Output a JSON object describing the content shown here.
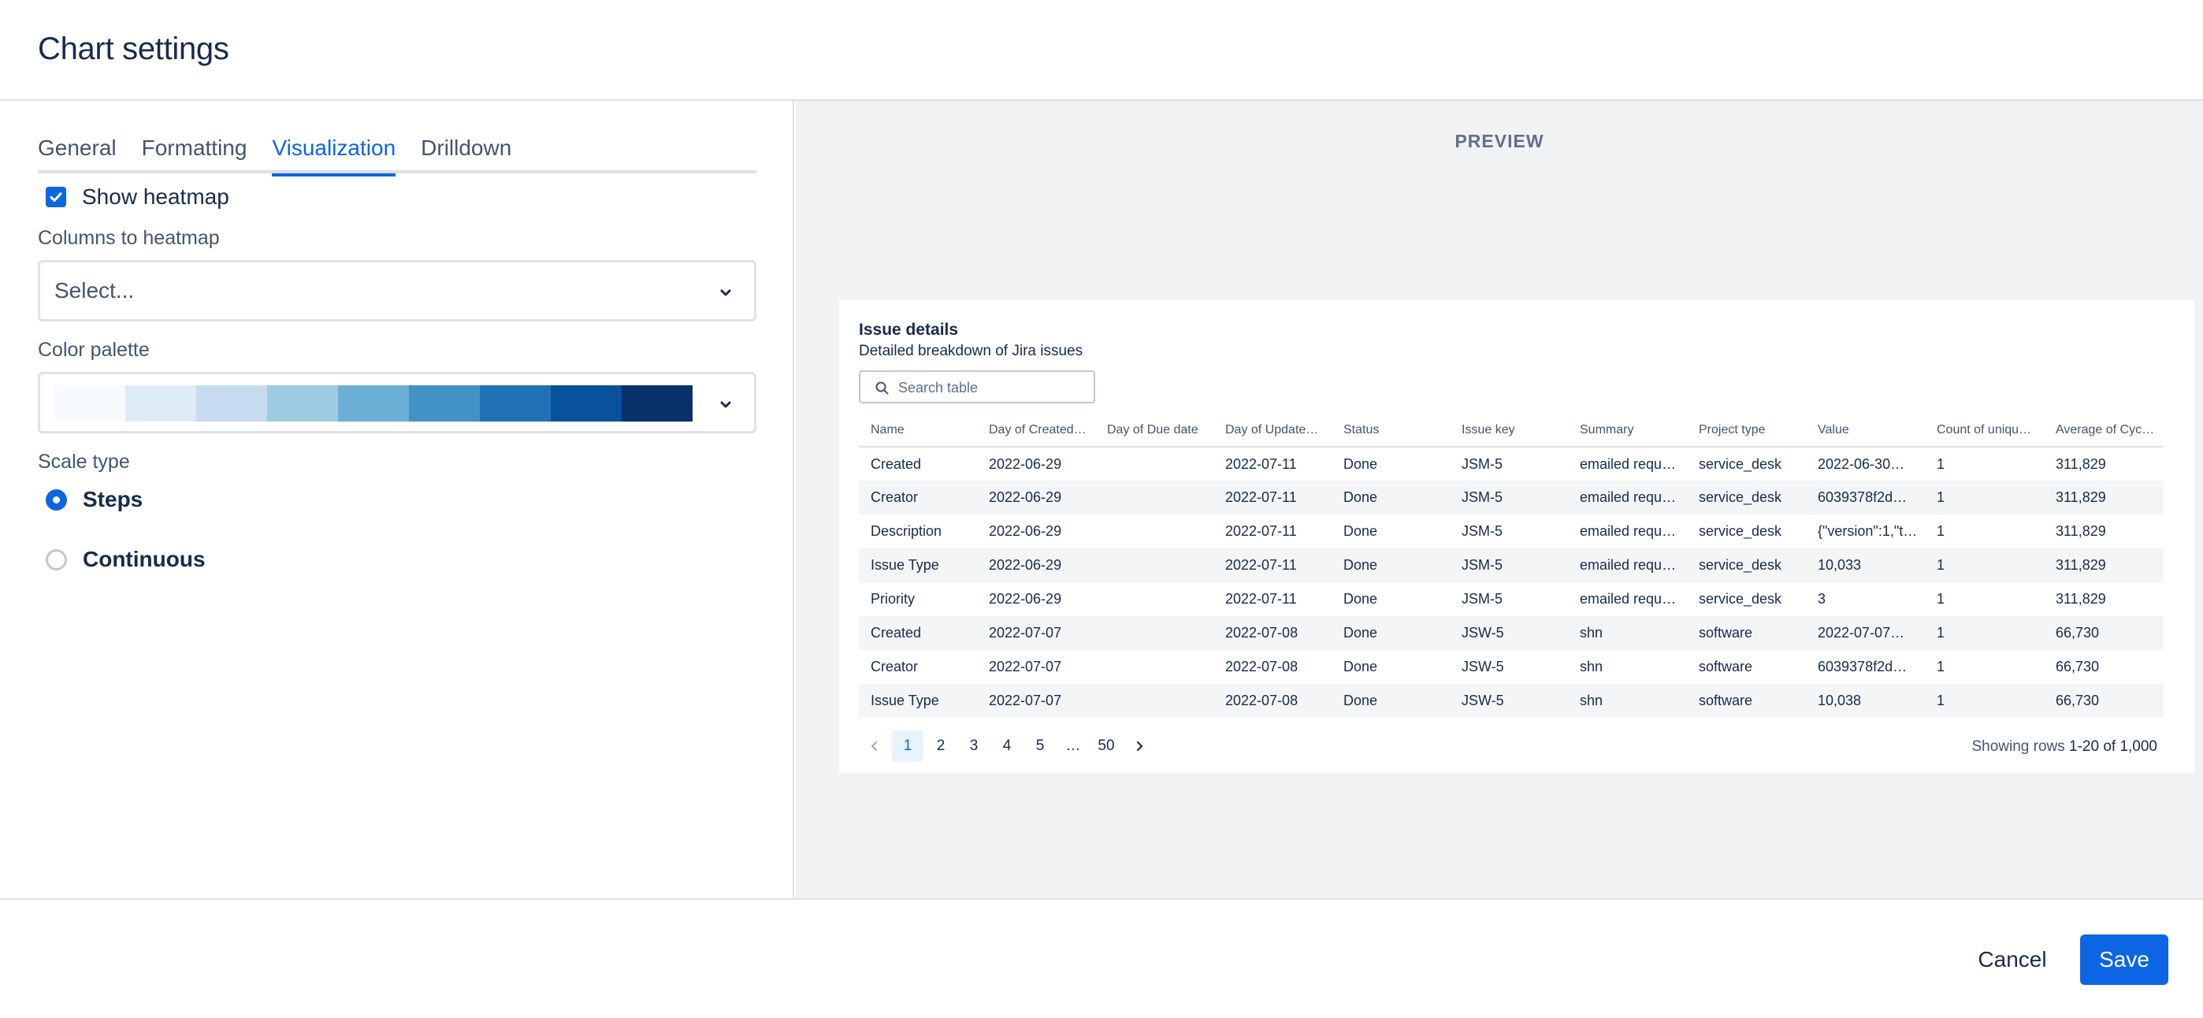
{
  "header": {
    "title": "Chart settings"
  },
  "tabs": [
    {
      "label": "General",
      "active": false
    },
    {
      "label": "Formatting",
      "active": false
    },
    {
      "label": "Visualization",
      "active": true
    },
    {
      "label": "Drilldown",
      "active": false
    }
  ],
  "settings": {
    "show_heatmap_label": "Show heatmap",
    "show_heatmap_checked": true,
    "columns_label": "Columns to heatmap",
    "columns_placeholder": "Select...",
    "palette_label": "Color palette",
    "palette_colors": [
      "#f7fbff",
      "#deebf7",
      "#c6dbef",
      "#9ecae1",
      "#6baed6",
      "#4292c6",
      "#2171b5",
      "#08519c",
      "#08306b"
    ],
    "scale_label": "Scale type",
    "scale_options": [
      {
        "label": "Steps",
        "selected": true
      },
      {
        "label": "Continuous",
        "selected": false
      }
    ]
  },
  "preview": {
    "label": "PREVIEW",
    "card_title": "Issue details",
    "card_subtitle": "Detailed breakdown of Jira issues",
    "search_placeholder": "Search table",
    "columns": [
      "Name",
      "Day of Created…",
      "Day of Due date",
      "Day of Update…",
      "Status",
      "Issue key",
      "Summary",
      "Project type",
      "Value",
      "Count of uniqu…",
      "Average of Cyc…"
    ],
    "rows": [
      [
        "Created",
        "2022-06-29",
        "",
        "2022-07-11",
        "Done",
        "JSM-5",
        "emailed requ…",
        "service_desk",
        "2022-06-30…",
        "1",
        "311,829"
      ],
      [
        "Creator",
        "2022-06-29",
        "",
        "2022-07-11",
        "Done",
        "JSM-5",
        "emailed requ…",
        "service_desk",
        "6039378f2d…",
        "1",
        "311,829"
      ],
      [
        "Description",
        "2022-06-29",
        "",
        "2022-07-11",
        "Done",
        "JSM-5",
        "emailed requ…",
        "service_desk",
        "{\"version\":1,\"t…",
        "1",
        "311,829"
      ],
      [
        "Issue Type",
        "2022-06-29",
        "",
        "2022-07-11",
        "Done",
        "JSM-5",
        "emailed requ…",
        "service_desk",
        "10,033",
        "1",
        "311,829"
      ],
      [
        "Priority",
        "2022-06-29",
        "",
        "2022-07-11",
        "Done",
        "JSM-5",
        "emailed requ…",
        "service_desk",
        "3",
        "1",
        "311,829"
      ],
      [
        "Created",
        "2022-07-07",
        "",
        "2022-07-08",
        "Done",
        "JSW-5",
        "shn",
        "software",
        "2022-07-07…",
        "1",
        "66,730"
      ],
      [
        "Creator",
        "2022-07-07",
        "",
        "2022-07-08",
        "Done",
        "JSW-5",
        "shn",
        "software",
        "6039378f2d…",
        "1",
        "66,730"
      ],
      [
        "Issue Type",
        "2022-07-07",
        "",
        "2022-07-08",
        "Done",
        "JSW-5",
        "shn",
        "software",
        "10,038",
        "1",
        "66,730"
      ]
    ],
    "pages": [
      "1",
      "2",
      "3",
      "4",
      "5",
      "…",
      "50"
    ],
    "current_page": "1",
    "rows_info_prefix": "Showing rows ",
    "rows_info_range": "1-20 of 1,000"
  },
  "footer": {
    "cancel_label": "Cancel",
    "save_label": "Save"
  }
}
